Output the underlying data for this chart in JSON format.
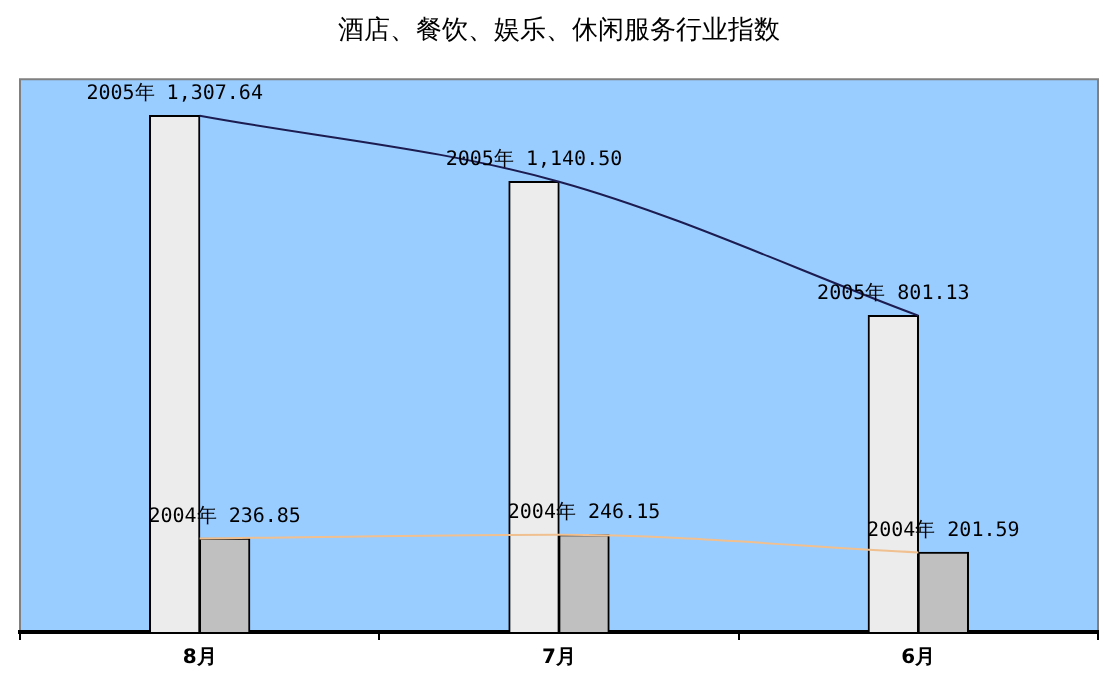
{
  "chart_data": {
    "type": "bar",
    "title": "酒店、餐饮、娱乐、休闲服务行业指数",
    "categories": [
      "8月",
      "7月",
      "6月"
    ],
    "marker": "none",
    "series": [
      {
        "color": "#ececec",
        "values": [
          1307.64,
          1140.5,
          801.13
        ],
        "value_labels": [
          "2005年 1,307.64",
          "2005年 1,140.50",
          "2005年 801.13"
        ]
      },
      {
        "color": "#c0c0c0",
        "values": [
          236.85,
          246.15,
          201.59
        ],
        "value_labels": [
          "2004年 236.85",
          "2004年 246.15",
          "2004年 201.59"
        ]
      },
      {
        "type": "line",
        "color": "#1c1c50",
        "values": [
          1307.64,
          1140.5,
          801.13
        ]
      },
      {
        "type": "line",
        "color": "#f0c090",
        "values": [
          236.85,
          246.15,
          201.59
        ]
      }
    ]
  }
}
